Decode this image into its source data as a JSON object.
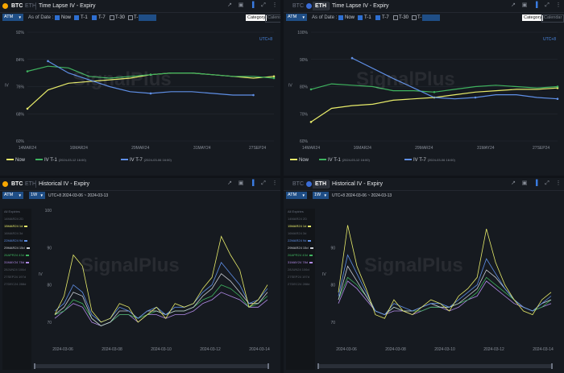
{
  "colors": {
    "yellow": "#e8ec6a",
    "green": "#3fb35f",
    "blue": "#5f8fe6",
    "bg": "#161a20",
    "grid": "#2a3038",
    "accent": "#2e6fd1"
  },
  "watermark": "SignalPlus",
  "time_lapse": {
    "coin_btc": "BTC",
    "coin_eth": "ETH",
    "title": "Time Lapse IV - Expiry",
    "atm_select": "ATM",
    "as_of_label": "As of Date :",
    "checks": [
      {
        "label": "Now",
        "checked": true
      },
      {
        "label": "T-1",
        "checked": true
      },
      {
        "label": "T-7",
        "checked": true
      },
      {
        "label": "T-30",
        "checked": false
      },
      {
        "label": "T-",
        "checked": false
      }
    ],
    "toggle_category": "Category",
    "toggle_calendar": "Calendar",
    "utc": "UTC+8",
    "legend": [
      {
        "name": "Now",
        "date": "",
        "color": "#e8ec6a"
      },
      {
        "name": "IV T-1",
        "date": "(2024-03-12 16:00)",
        "color": "#3fb35f"
      },
      {
        "name": "IV T-7",
        "date": "(2024-03-06 16:00)",
        "color": "#5f8fe6"
      }
    ]
  },
  "historical": {
    "coin_btc": "BTC",
    "coin_eth": "ETH",
    "title": "Historical IV - Expiry",
    "atm_select": "ATM",
    "period_select": "1W",
    "range_text": "UTC+8 2024-03-06 ~ 2024-03-13",
    "all_expiries": "All Expiries",
    "btc_side": [
      {
        "label": "14MAR24 2D",
        "active": false,
        "color": "#6b7280"
      },
      {
        "label": "15MAR24 1d",
        "active": true,
        "color": "#e8ec6a"
      },
      {
        "label": "16MAR24 3d",
        "active": false,
        "color": "#6b7280"
      },
      {
        "label": "22MAR24 9d",
        "active": true,
        "color": "#5f8fe6"
      },
      {
        "label": "29MAR24 15d",
        "active": true,
        "color": "#c9cdd4"
      },
      {
        "label": "26APR24 43d",
        "active": true,
        "color": "#3fb35f"
      },
      {
        "label": "31MAY24 78d",
        "active": true,
        "color": "#b08ae6"
      },
      {
        "label": "28JUN24 106d",
        "active": false,
        "color": "#6b7280"
      },
      {
        "label": "27SEP24 197d",
        "active": false,
        "color": "#6b7280"
      },
      {
        "label": "27DEC24 288d",
        "active": false,
        "color": "#6b7280"
      }
    ],
    "eth_side": [
      {
        "label": "14MAR24 2D",
        "active": false,
        "color": "#6b7280"
      },
      {
        "label": "15MAR24 1d",
        "active": true,
        "color": "#e8ec6a"
      },
      {
        "label": "16MAR24 3d",
        "active": false,
        "color": "#6b7280"
      },
      {
        "label": "22MAR24 9d",
        "active": true,
        "color": "#5f8fe6"
      },
      {
        "label": "29MAR24 15d",
        "active": true,
        "color": "#c9cdd4"
      },
      {
        "label": "26APR24 43d",
        "active": true,
        "color": "#3fb35f"
      },
      {
        "label": "31MAY24 78d",
        "active": true,
        "color": "#b08ae6"
      },
      {
        "label": "28JUN24 106d",
        "active": false,
        "color": "#6b7280"
      },
      {
        "label": "27SEP24 197d",
        "active": false,
        "color": "#6b7280"
      },
      {
        "label": "27DEC24 288d",
        "active": false,
        "color": "#6b7280"
      }
    ]
  },
  "chart_data": [
    {
      "type": "line",
      "title": "BTC Time Lapse IV - Expiry",
      "ylabel": "IV",
      "ylim": [
        60,
        92
      ],
      "y_ticks": [
        "92%",
        "84%",
        "76%",
        "68%",
        "60%"
      ],
      "x_ticks": [
        "14MAR24",
        "16MAR24",
        "29MAR24",
        "31MAY24",
        "27SEP24"
      ],
      "x": [
        0,
        1,
        2,
        3,
        4,
        5,
        6,
        7,
        8,
        9,
        10,
        11,
        12
      ],
      "series": [
        {
          "name": "Now",
          "color": "#e8ec6a",
          "values": [
            69.5,
            75,
            77,
            77.5,
            78,
            78.5,
            79.5,
            80,
            80,
            79.5,
            79,
            78.5,
            79
          ]
        },
        {
          "name": "IV T-1",
          "color": "#3fb35f",
          "values": [
            80.5,
            82,
            81.5,
            79,
            78.5,
            79,
            79.5,
            80,
            80,
            79.5,
            79,
            79,
            78.5
          ]
        },
        {
          "name": "IV T-7",
          "color": "#5f8fe6",
          "values": null,
          "points": [
            [
              1,
              83.5
            ],
            [
              2,
              80
            ],
            [
              3,
              78
            ],
            [
              4,
              76
            ],
            [
              5,
              74.5
            ],
            [
              6,
              74
            ],
            [
              7,
              74.5
            ],
            [
              8,
              74.5
            ],
            [
              9,
              74
            ],
            [
              10,
              73.5
            ],
            [
              11,
              73.5
            ]
          ]
        }
      ]
    },
    {
      "type": "line",
      "title": "ETH Time Lapse IV - Expiry",
      "ylabel": "IV",
      "ylim": [
        60,
        100
      ],
      "y_ticks": [
        "100%",
        "90%",
        "80%",
        "70%",
        "60%"
      ],
      "x_ticks": [
        "14MAR24",
        "16MAR24",
        "29MAR24",
        "31MAY24",
        "27SEP24"
      ],
      "x": [
        0,
        1,
        2,
        3,
        4,
        5,
        6,
        7,
        8,
        9,
        10,
        11,
        12
      ],
      "series": [
        {
          "name": "Now",
          "color": "#e8ec6a",
          "values": [
            67,
            72,
            73,
            73.5,
            75,
            75.5,
            76,
            77,
            78,
            78.5,
            79,
            79,
            79.5
          ]
        },
        {
          "name": "IV T-1",
          "color": "#3fb35f",
          "values": [
            79,
            81,
            80.5,
            80,
            78.5,
            78.5,
            78,
            79,
            80,
            80.5,
            80,
            79.5,
            80
          ]
        },
        {
          "name": "IV T-7",
          "color": "#5f8fe6",
          "values": null,
          "points": [
            [
              2,
              90.5
            ],
            [
              4,
              83
            ],
            [
              6,
              76
            ],
            [
              7,
              75.5
            ],
            [
              8,
              76
            ],
            [
              9,
              77
            ],
            [
              10,
              77
            ],
            [
              11,
              76
            ],
            [
              12,
              75.5
            ]
          ]
        }
      ]
    },
    {
      "type": "line",
      "title": "BTC Historical IV - Expiry",
      "ylabel": "IV",
      "ylim": [
        65,
        100
      ],
      "y_ticks": [
        "100",
        "90",
        "80",
        "70"
      ],
      "x_ticks": [
        "2024-03-06",
        "2024-03-08",
        "2024-03-10",
        "2024-03-12",
        "2024-03-14"
      ],
      "series": [
        {
          "name": "15MAR24 1d",
          "color": "#e8ec6a",
          "values": [
            72,
            77,
            88,
            85,
            73,
            70,
            71,
            75,
            74,
            70,
            72,
            74,
            71,
            75,
            74,
            75,
            79,
            82,
            93,
            88,
            84,
            74,
            76,
            80
          ]
        },
        {
          "name": "22MAR24 9d",
          "color": "#5f8fe6",
          "values": [
            73,
            75,
            80,
            78,
            72,
            70,
            71,
            74,
            73,
            71,
            73,
            74,
            72,
            74,
            74,
            75,
            78,
            80,
            86,
            83,
            80,
            75,
            76,
            79
          ]
        },
        {
          "name": "29MAR24 15d",
          "color": "#c9cdd4",
          "values": [
            72,
            74,
            78,
            77,
            71,
            69,
            70,
            73,
            73,
            71,
            73,
            73,
            72,
            73,
            73,
            74,
            77,
            79,
            83,
            81,
            78,
            75,
            75,
            78
          ]
        },
        {
          "name": "26APR24 43d",
          "color": "#3fb35f",
          "values": [
            72,
            73,
            76,
            75,
            71,
            69,
            70,
            72,
            72,
            71,
            72,
            73,
            72,
            73,
            73,
            74,
            76,
            77,
            80,
            79,
            77,
            74,
            75,
            77
          ]
        },
        {
          "name": "31MAY24 78d",
          "color": "#b08ae6",
          "values": [
            71,
            73,
            75,
            74,
            70,
            69,
            70,
            72,
            72,
            70,
            72,
            72,
            71,
            72,
            72,
            73,
            75,
            76,
            78,
            77,
            76,
            74,
            74,
            76
          ]
        }
      ]
    },
    {
      "type": "line",
      "title": "ETH Historical IV - Expiry",
      "ylabel": "IV",
      "ylim": [
        65,
        100
      ],
      "y_ticks": [
        "90",
        "80",
        "70"
      ],
      "x_ticks": [
        "2024-03-06",
        "2024-03-08",
        "2024-03-10",
        "2024-03-12",
        "2024-03-14"
      ],
      "series": [
        {
          "name": "15MAR24 1d",
          "color": "#e8ec6a",
          "values": [
            78,
            96,
            85,
            79,
            72,
            71,
            76,
            73,
            72,
            74,
            76,
            75,
            73,
            77,
            79,
            82,
            95,
            86,
            80,
            76,
            73,
            72,
            76,
            78
          ]
        },
        {
          "name": "22MAR24 9d",
          "color": "#5f8fe6",
          "values": [
            77,
            88,
            83,
            78,
            73,
            72,
            75,
            74,
            73,
            74,
            75,
            75,
            74,
            76,
            78,
            80,
            87,
            83,
            79,
            76,
            74,
            73,
            75,
            77
          ]
        },
        {
          "name": "29MAR24 15d",
          "color": "#c9cdd4",
          "values": [
            76,
            85,
            81,
            77,
            73,
            72,
            74,
            73,
            73,
            74,
            75,
            74,
            74,
            75,
            77,
            79,
            84,
            82,
            79,
            76,
            74,
            73,
            75,
            76
          ]
        },
        {
          "name": "26APR24 43d",
          "color": "#3fb35f",
          "values": [
            76,
            82,
            80,
            77,
            73,
            72,
            74,
            73,
            73,
            73,
            74,
            74,
            74,
            75,
            76,
            78,
            82,
            80,
            78,
            76,
            74,
            73,
            74,
            76
          ]
        },
        {
          "name": "31MAY24 78d",
          "color": "#b08ae6",
          "values": [
            75,
            81,
            79,
            76,
            73,
            72,
            73,
            73,
            72,
            73,
            74,
            74,
            73,
            74,
            76,
            77,
            81,
            79,
            77,
            75,
            74,
            73,
            74,
            75
          ]
        }
      ]
    }
  ]
}
